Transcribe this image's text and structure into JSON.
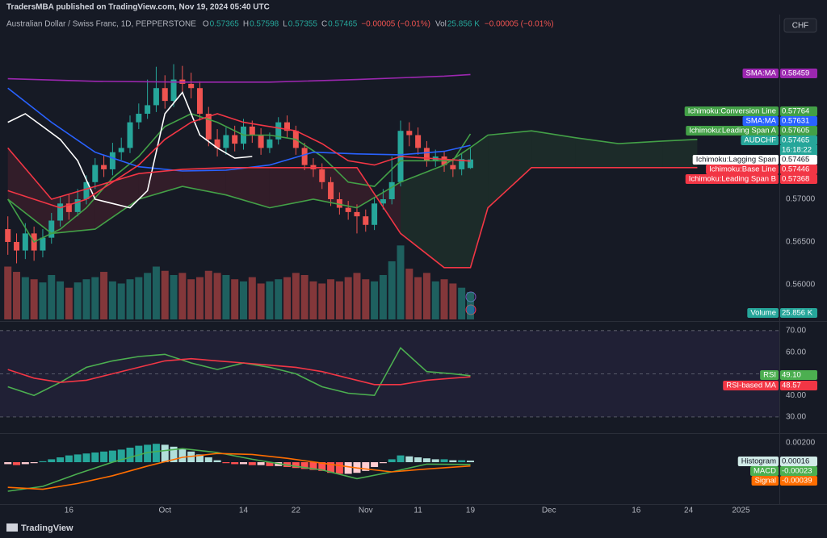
{
  "header": {
    "publisher": "TradersMBA published on TradingView.com, Nov 19, 2024 05:40 UTC",
    "currency": "CHF",
    "footer": "TradingView"
  },
  "legend": {
    "symbol": "Australian Dollar / Swiss Franc, 1D, PEPPERSTONE",
    "items": [
      {
        "key": "O",
        "value": "0.57365"
      },
      {
        "key": "H",
        "value": "0.57598"
      },
      {
        "key": "L",
        "value": "0.57355"
      },
      {
        "key": "C",
        "value": "0.57465"
      }
    ],
    "change": "−0.00005 (−0.01%)",
    "volume_key": "Vol",
    "volume": "25.856 K",
    "volume_change": "−0.00005 (−0.01%)"
  },
  "chart_data": [
    {
      "type": "candlestick",
      "name": "AUDCHF",
      "tag": "0.57465",
      "countdown": "16:18:22",
      "up_color": "#26a69a",
      "down_color": "#ef5350",
      "xlim": [
        -0.9,
        88.4
      ],
      "xticks": [
        {
          "value": 7,
          "label": "16"
        },
        {
          "value": 18,
          "label": "Oct"
        },
        {
          "value": 27,
          "label": "14"
        },
        {
          "value": 33,
          "label": "22"
        },
        {
          "value": 41,
          "label": "Nov"
        },
        {
          "value": 47,
          "label": "11"
        },
        {
          "value": 53,
          "label": "19"
        },
        {
          "value": 62,
          "label": "Dec"
        },
        {
          "value": 72,
          "label": "16"
        },
        {
          "value": 78,
          "label": "24"
        },
        {
          "value": 84,
          "label": "2025"
        }
      ],
      "ylim": [
        0.55575,
        0.59142
      ],
      "yticks": [
        {
          "value": 0.56,
          "label": "0.56000"
        },
        {
          "value": 0.565,
          "label": "0.56500"
        },
        {
          "value": 0.57,
          "label": "0.57000"
        }
      ],
      "open": [
        0.5665,
        0.565,
        0.564,
        0.566,
        0.564,
        0.5655,
        0.5675,
        0.5695,
        0.5685,
        0.57,
        0.572,
        0.574,
        0.5735,
        0.5755,
        0.576,
        0.579,
        0.58,
        0.581,
        0.583,
        0.5815,
        0.584,
        0.5835,
        0.583,
        0.58,
        0.577,
        0.576,
        0.5775,
        0.5765,
        0.5785,
        0.5775,
        0.576,
        0.577,
        0.579,
        0.578,
        0.576,
        0.574,
        0.5735,
        0.572,
        0.57,
        0.569,
        0.5685,
        0.568,
        0.567,
        0.5695,
        0.57,
        0.572,
        0.578,
        0.5775,
        0.576,
        0.5745,
        0.575,
        0.574,
        0.5735,
        0.57365
      ],
      "high": [
        0.568,
        0.566,
        0.5672,
        0.5668,
        0.5665,
        0.5684,
        0.5703,
        0.5706,
        0.5712,
        0.5728,
        0.5748,
        0.5752,
        0.5766,
        0.5772,
        0.5798,
        0.5812,
        0.584,
        0.5855,
        0.5845,
        0.5858,
        0.5856,
        0.5848,
        0.5838,
        0.5808,
        0.5782,
        0.5784,
        0.5786,
        0.5794,
        0.5792,
        0.5783,
        0.5778,
        0.5796,
        0.5798,
        0.5786,
        0.5766,
        0.5748,
        0.5742,
        0.5726,
        0.5708,
        0.5698,
        0.5694,
        0.5688,
        0.5702,
        0.5712,
        0.575,
        0.5792,
        0.579,
        0.5784,
        0.5768,
        0.5758,
        0.5756,
        0.5748,
        0.5754,
        0.57598
      ],
      "low": [
        0.5635,
        0.5625,
        0.563,
        0.5628,
        0.5632,
        0.5648,
        0.5668,
        0.5676,
        0.568,
        0.5694,
        0.5712,
        0.5726,
        0.5728,
        0.5746,
        0.5754,
        0.5782,
        0.5794,
        0.5802,
        0.5806,
        0.5808,
        0.5824,
        0.5818,
        0.5792,
        0.5762,
        0.575,
        0.5752,
        0.5756,
        0.5758,
        0.5766,
        0.5752,
        0.5754,
        0.5764,
        0.5772,
        0.5752,
        0.5734,
        0.5726,
        0.5712,
        0.5692,
        0.5682,
        0.5676,
        0.566,
        0.5662,
        0.5664,
        0.5688,
        0.5694,
        0.5715,
        0.5762,
        0.5752,
        0.5738,
        0.5738,
        0.5732,
        0.5726,
        0.5728,
        0.57355
      ],
      "close": [
        0.565,
        0.564,
        0.566,
        0.564,
        0.5655,
        0.5675,
        0.5695,
        0.5685,
        0.57,
        0.572,
        0.574,
        0.5735,
        0.5755,
        0.576,
        0.579,
        0.58,
        0.581,
        0.583,
        0.5815,
        0.584,
        0.5835,
        0.583,
        0.58,
        0.577,
        0.576,
        0.5775,
        0.5765,
        0.5785,
        0.5775,
        0.576,
        0.577,
        0.579,
        0.578,
        0.576,
        0.574,
        0.5735,
        0.572,
        0.57,
        0.569,
        0.5685,
        0.568,
        0.567,
        0.5695,
        0.57,
        0.572,
        0.578,
        0.5775,
        0.576,
        0.5745,
        0.575,
        0.574,
        0.5735,
        0.5747,
        0.57465
      ],
      "volume": {
        "name": "Volume",
        "tag": "25.856 K",
        "ylim": [
          0,
          100
        ],
        "values": [
          50,
          45,
          40,
          38,
          35,
          42,
          36,
          30,
          35,
          38,
          40,
          45,
          36,
          34,
          38,
          40,
          44,
          50,
          46,
          42,
          44,
          38,
          40,
          46,
          44,
          42,
          38,
          36,
          40,
          34,
          36,
          38,
          40,
          44,
          42,
          36,
          34,
          38,
          36,
          40,
          44,
          38,
          36,
          42,
          55,
          70,
          48,
          40,
          44,
          36,
          38,
          34,
          30,
          25.856
        ]
      },
      "cloud": {
        "up_color": "rgba(67,160,71,0.13)",
        "down_color": "rgba(242,54,69,0.13)"
      },
      "series": [
        {
          "name": "SMA:MA",
          "color": "#9c27b0",
          "tag": "0.58459",
          "x": [
            0,
            10,
            20,
            30,
            40,
            50,
            53
          ],
          "values": [
            0.5841,
            0.5838,
            0.5837,
            0.5837,
            0.584,
            0.5844,
            0.58459
          ]
        },
        {
          "name": "Ichimoku:Conversion Line",
          "color": "#43a047",
          "tag": "0.57764",
          "x": [
            0,
            3,
            6,
            9,
            12,
            15,
            18,
            21,
            24,
            27,
            30,
            33,
            36,
            39,
            42,
            45,
            48,
            51,
            53
          ],
          "values": [
            0.57,
            0.565,
            0.5665,
            0.569,
            0.5725,
            0.575,
            0.5785,
            0.58,
            0.579,
            0.5775,
            0.5775,
            0.577,
            0.575,
            0.572,
            0.5715,
            0.5745,
            0.5745,
            0.5745,
            0.57764
          ]
        },
        {
          "name": "SMA:MA",
          "color": "#2962ff",
          "tag": "0.57631",
          "x": [
            0,
            5,
            10,
            15,
            20,
            25,
            30,
            35,
            40,
            45,
            50,
            53
          ],
          "values": [
            0.583,
            0.579,
            0.5755,
            0.5738,
            0.5733,
            0.5734,
            0.574,
            0.5755,
            0.5753,
            0.5752,
            0.5756,
            0.57631
          ]
        },
        {
          "name": "Ichimoku:Leading Span A",
          "color": "#43a047",
          "tag": "0.57605",
          "cloud": "a",
          "x": [
            0,
            5,
            10,
            15,
            20,
            25,
            30,
            35,
            40,
            45,
            50,
            53,
            55,
            60,
            65,
            70,
            75,
            79
          ],
          "values": [
            0.57,
            0.566,
            0.5665,
            0.57,
            0.5715,
            0.5705,
            0.569,
            0.57,
            0.569,
            0.572,
            0.574,
            0.57605,
            0.5775,
            0.578,
            0.5772,
            0.5765,
            0.5768,
            0.577
          ]
        },
        {
          "name": "Ichimoku:Lagging Span",
          "color": "#ffffff",
          "tag": "0.57465",
          "x": [
            0,
            2,
            4,
            6,
            8,
            10,
            12,
            14,
            16,
            18,
            20,
            22,
            24,
            26,
            28
          ],
          "values": [
            0.579,
            0.58,
            0.5785,
            0.577,
            0.5745,
            0.57,
            0.5695,
            0.569,
            0.571,
            0.58,
            0.5825,
            0.5775,
            0.576,
            0.5748,
            0.575
          ]
        },
        {
          "name": "Ichimoku:Base Line",
          "color": "#f23645",
          "tag": "0.57446",
          "x": [
            0,
            3,
            6,
            9,
            12,
            15,
            18,
            21,
            24,
            27,
            30,
            33,
            36,
            39,
            42,
            45,
            48,
            51,
            53
          ],
          "values": [
            0.571,
            0.57,
            0.569,
            0.57,
            0.572,
            0.574,
            0.577,
            0.579,
            0.58,
            0.579,
            0.5785,
            0.578,
            0.5765,
            0.5745,
            0.574,
            0.575,
            0.5748,
            0.5746,
            0.57446
          ]
        },
        {
          "name": "Ichimoku:Leading Span B",
          "color": "#f23645",
          "tag": "0.57368",
          "cloud": "b",
          "x": [
            0,
            5,
            10,
            15,
            20,
            25,
            30,
            35,
            40,
            45,
            50,
            53,
            55,
            60,
            65,
            70,
            75,
            79
          ],
          "values": [
            0.576,
            0.57,
            0.5715,
            0.573,
            0.5735,
            0.5737,
            0.5737,
            0.5737,
            0.5737,
            0.566,
            0.562,
            0.562,
            0.569,
            0.5737,
            0.5737,
            0.5737,
            0.5737,
            0.5737
          ]
        }
      ]
    },
    {
      "type": "line",
      "ylim": [
        22.5,
        73.7
      ],
      "yticks": [
        {
          "value": 70,
          "label": "70.00"
        },
        {
          "value": 60,
          "label": "60.00"
        },
        {
          "value": 40,
          "label": "40.00"
        },
        {
          "value": 30,
          "label": "30.00"
        }
      ],
      "band": {
        "upper": 70,
        "middle": 50,
        "lower": 30,
        "color": "rgba(126,87,194,0.1)"
      },
      "series": [
        {
          "name": "RSI",
          "color": "#4caf50",
          "tag": "49.10",
          "x": [
            0,
            3,
            6,
            9,
            12,
            15,
            18,
            21,
            24,
            27,
            30,
            33,
            36,
            39,
            42,
            45,
            48,
            51,
            53
          ],
          "values": [
            44,
            40,
            46,
            53,
            56,
            58,
            59,
            55,
            52,
            55,
            53,
            50,
            44,
            41,
            40,
            62,
            51,
            50,
            49.1
          ]
        },
        {
          "name": "RSI-based MA",
          "color": "#f23645",
          "tag": "48.57",
          "x": [
            0,
            3,
            6,
            9,
            12,
            15,
            18,
            21,
            24,
            27,
            30,
            33,
            36,
            39,
            42,
            45,
            48,
            51,
            53
          ],
          "values": [
            52,
            48,
            46,
            47,
            50,
            53,
            56,
            57,
            56,
            55,
            54,
            53,
            51,
            48,
            45,
            45,
            47,
            48,
            48.57
          ]
        }
      ]
    },
    {
      "type": "macd",
      "ylim": [
        -0.00433,
        0.00275
      ],
      "yticks": [
        {
          "value": 0.002,
          "label": "0.00200"
        }
      ],
      "histogram": {
        "name": "Histogram",
        "tag": "0.00016",
        "tag_color": "#d1ebe8",
        "colors": {
          "rise_up": "#26a69a",
          "fall_up": "#b2dfdb",
          "fall_down": "#ff5252",
          "rise_down": "#ffcdd2"
        },
        "values": [
          -0.0002,
          -0.0003,
          -0.0002,
          -0.0001,
          0.0001,
          0.0003,
          0.0005,
          0.0007,
          0.0008,
          0.0009,
          0.001,
          0.0011,
          0.0012,
          0.0013,
          0.0015,
          0.0017,
          0.0018,
          0.0019,
          0.0018,
          0.0016,
          0.0014,
          0.0011,
          0.0008,
          0.0005,
          0.0002,
          -0.0001,
          -0.0002,
          -0.0002,
          -0.0003,
          -0.0003,
          -0.0004,
          -0.0004,
          -0.0005,
          -0.0006,
          -0.0007,
          -0.0008,
          -0.0009,
          -0.0011,
          -0.0012,
          -0.0012,
          -0.0011,
          -0.0009,
          -0.0005,
          -0.0001,
          0.0003,
          0.0007,
          0.0006,
          0.0005,
          0.0004,
          0.0003,
          0.0003,
          0.0002,
          0.0002,
          0.00016
        ]
      },
      "series": [
        {
          "name": "MACD",
          "color": "#4caf50",
          "tag": "-0.00023",
          "x": [
            0,
            4,
            8,
            12,
            16,
            20,
            24,
            28,
            32,
            36,
            40,
            44,
            48,
            53
          ],
          "values": [
            -0.003,
            -0.0025,
            -0.0012,
            0.0,
            0.001,
            0.0014,
            0.001,
            0.0003,
            -0.0003,
            -0.0008,
            -0.0017,
            -0.001,
            -0.0002,
            -0.00023
          ]
        },
        {
          "name": "Signal",
          "color": "#ff6d00",
          "tag": "-0.00039",
          "x": [
            0,
            4,
            8,
            12,
            16,
            20,
            24,
            28,
            32,
            36,
            40,
            44,
            48,
            53
          ],
          "values": [
            -0.0026,
            -0.0028,
            -0.0022,
            -0.0014,
            -0.0004,
            0.0005,
            0.0009,
            0.0008,
            0.0004,
            -0.0001,
            -0.0006,
            -0.001,
            -0.0007,
            -0.00039
          ]
        }
      ]
    }
  ]
}
